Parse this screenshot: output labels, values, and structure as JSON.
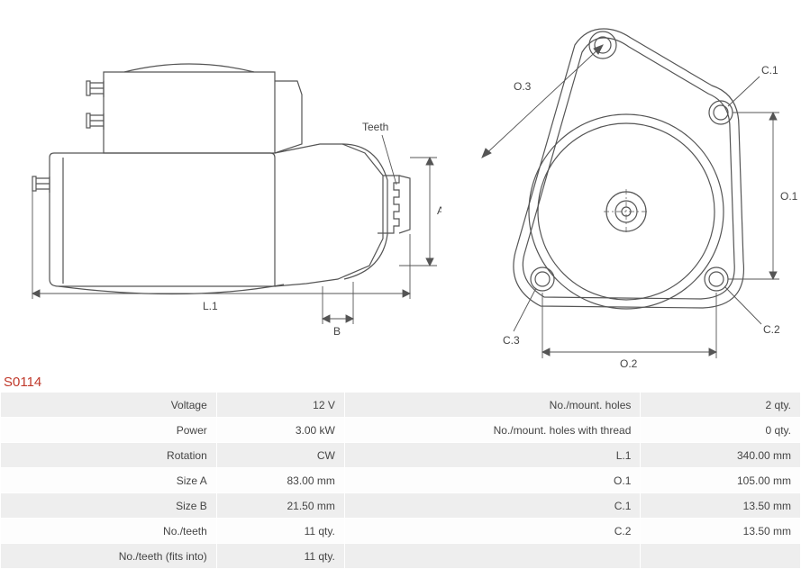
{
  "part_id": "S0114",
  "diagrams": {
    "stroke_color": "#555555",
    "stroke_width": 1.2,
    "thin_stroke": 0.9,
    "side": {
      "labels": {
        "teeth": "Teeth",
        "A": "A",
        "B": "B",
        "L1": "L.1"
      }
    },
    "front": {
      "labels": {
        "O1": "O.1",
        "O2": "O.2",
        "O3": "O.3",
        "C1": "C.1",
        "C2": "C.2",
        "C3": "C.3"
      }
    }
  },
  "specs": {
    "rows": [
      {
        "l1": "Voltage",
        "v1": "12 V",
        "l2": "No./mount. holes",
        "v2": "2 qty."
      },
      {
        "l1": "Power",
        "v1": "3.00 kW",
        "l2": "No./mount. holes with thread",
        "v2": "0 qty."
      },
      {
        "l1": "Rotation",
        "v1": "CW",
        "l2": "L.1",
        "v2": "340.00 mm"
      },
      {
        "l1": "Size A",
        "v1": "83.00 mm",
        "l2": "O.1",
        "v2": "105.00 mm"
      },
      {
        "l1": "Size B",
        "v1": "21.50 mm",
        "l2": "C.1",
        "v2": "13.50 mm"
      },
      {
        "l1": "No./teeth",
        "v1": "11 qty.",
        "l2": "C.2",
        "v2": "13.50 mm"
      },
      {
        "l1": "No./teeth (fits into)",
        "v1": "11 qty.",
        "l2": "",
        "v2": ""
      }
    ]
  }
}
